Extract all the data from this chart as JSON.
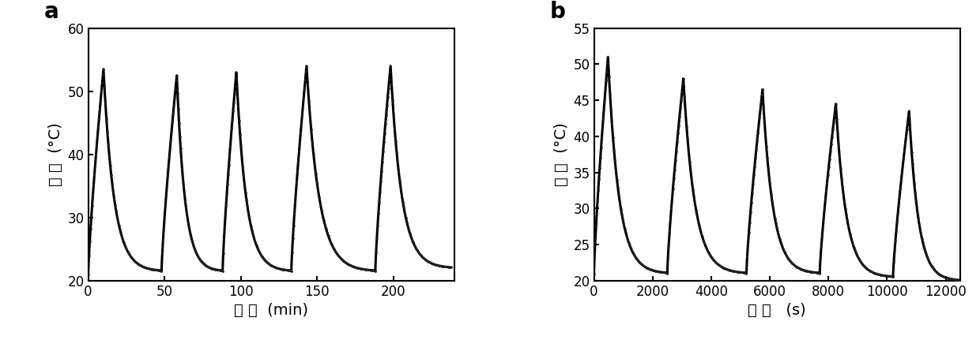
{
  "panel_a": {
    "title": "a",
    "xlabel_cn": "时 间",
    "xlabel_unit": "(min)",
    "ylabel_cn": "温 度",
    "ylabel_unit": "(°C)",
    "ylim": [
      20,
      60
    ],
    "xlim": [
      0,
      240
    ],
    "yticks": [
      20,
      30,
      40,
      50,
      60
    ],
    "xticks": [
      0,
      50,
      100,
      150,
      200
    ],
    "cycles": [
      {
        "heat_start": 0,
        "heat_end": 10,
        "t_base": 21.0,
        "t_peak": 53.5,
        "cool_end": 48,
        "t_cool": 21.5
      },
      {
        "heat_start": 48,
        "heat_end": 58,
        "t_base": 21.5,
        "t_peak": 52.5,
        "cool_end": 88,
        "t_cool": 21.5
      },
      {
        "heat_start": 88,
        "heat_end": 97,
        "t_base": 21.5,
        "t_peak": 53.0,
        "cool_end": 133,
        "t_cool": 21.5
      },
      {
        "heat_start": 133,
        "heat_end": 143,
        "t_base": 21.5,
        "t_peak": 54.0,
        "cool_end": 188,
        "t_cool": 21.5
      },
      {
        "heat_start": 188,
        "heat_end": 198,
        "t_base": 21.5,
        "t_peak": 54.0,
        "cool_end": 238,
        "t_cool": 22.0
      }
    ]
  },
  "panel_b": {
    "title": "b",
    "xlabel_cn": "时 间",
    "xlabel_unit": " (s)",
    "ylabel_cn": "温 度",
    "ylabel_unit": "(°C)",
    "ylim": [
      20,
      55
    ],
    "xlim": [
      0,
      12500
    ],
    "yticks": [
      20,
      25,
      30,
      35,
      40,
      45,
      50,
      55
    ],
    "xticks": [
      0,
      2000,
      4000,
      6000,
      8000,
      10000,
      12000
    ],
    "cycles": [
      {
        "heat_start": 0,
        "heat_end": 480,
        "t_base": 21.0,
        "t_peak": 51.0,
        "cool_end": 2500,
        "t_cool": 21.0
      },
      {
        "heat_start": 2500,
        "heat_end": 3050,
        "t_base": 21.0,
        "t_peak": 48.0,
        "cool_end": 5200,
        "t_cool": 21.0
      },
      {
        "heat_start": 5200,
        "heat_end": 5750,
        "t_base": 21.0,
        "t_peak": 46.5,
        "cool_end": 7700,
        "t_cool": 21.0
      },
      {
        "heat_start": 7700,
        "heat_end": 8250,
        "t_base": 21.0,
        "t_peak": 44.5,
        "cool_end": 10200,
        "t_cool": 20.5
      },
      {
        "heat_start": 10200,
        "heat_end": 10750,
        "t_base": 20.5,
        "t_peak": 43.5,
        "cool_end": 12500,
        "t_cool": 20.0
      }
    ]
  },
  "line_color": "#000000",
  "dot_color": "#222222",
  "bg_color": "#ffffff",
  "linewidth": 2.2,
  "dot_size": 4
}
